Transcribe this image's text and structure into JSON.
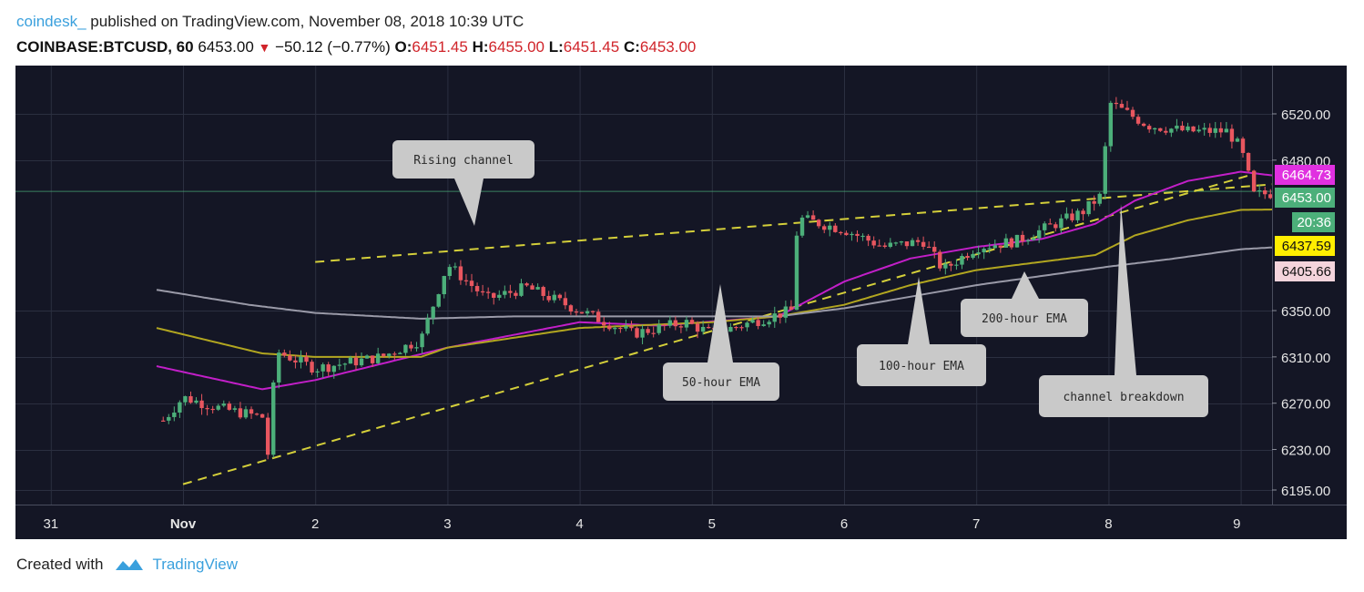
{
  "header": {
    "author": "coindesk_",
    "published": " published on TradingView.com, November 08, 2018 10:39 UTC",
    "symbol": "COINBASE:BTCUSD, 60",
    "last": "6453.00",
    "change": "−50.12 (−0.77%)",
    "o_label": "O:",
    "o_value": "6451.45",
    "h_label": "H:",
    "h_value": "6455.00",
    "l_label": "L:",
    "l_value": "6451.45",
    "c_label": "C:",
    "c_value": "6453.00"
  },
  "footer": {
    "created_with": "Created with",
    "brand": "TradingView"
  },
  "colors": {
    "background": "#141625",
    "grid": "#2b2f40",
    "up": "#4caf7a",
    "down": "#e8565f",
    "ema50": "#c21fc8",
    "ema100": "#b2a620",
    "ema200": "#9a9aa8",
    "channel": "#d4cf3a",
    "callout": "#c9c9c9"
  },
  "chart_data": {
    "type": "candlestick",
    "title": "COINBASE:BTCUSD, 60",
    "x_ticks": [
      "31",
      "Nov",
      "2",
      "3",
      "4",
      "5",
      "6",
      "7",
      "8",
      "9"
    ],
    "y_ticks": [
      "6520.00",
      "6480.00",
      "6350.00",
      "6310.00",
      "6270.00",
      "6230.00",
      "6195.00"
    ],
    "y_range": [
      6180,
      6560
    ],
    "price_badges": [
      {
        "value": "6464.73",
        "series": "50-hour EMA"
      },
      {
        "value": "6453.00",
        "series": "last price"
      },
      {
        "value": "20:36",
        "series": "countdown"
      },
      {
        "value": "6437.59",
        "series": "100-hour EMA"
      },
      {
        "value": "6405.66",
        "series": "200-hour EMA"
      }
    ],
    "last_price": 6453.0,
    "price_path": [
      {
        "t": -0.15,
        "p": 6255
      },
      {
        "t": 0.0,
        "p": 6275
      },
      {
        "t": 0.3,
        "p": 6265
      },
      {
        "t": 0.6,
        "p": 6258
      },
      {
        "t": 0.65,
        "p": 6220
      },
      {
        "t": 0.7,
        "p": 6315
      },
      {
        "t": 1.0,
        "p": 6300
      },
      {
        "t": 1.5,
        "p": 6310
      },
      {
        "t": 1.8,
        "p": 6325
      },
      {
        "t": 2.0,
        "p": 6390
      },
      {
        "t": 2.3,
        "p": 6360
      },
      {
        "t": 2.6,
        "p": 6370
      },
      {
        "t": 3.0,
        "p": 6350
      },
      {
        "t": 3.4,
        "p": 6330
      },
      {
        "t": 3.8,
        "p": 6340
      },
      {
        "t": 4.0,
        "p": 6330
      },
      {
        "t": 4.3,
        "p": 6340
      },
      {
        "t": 4.6,
        "p": 6350
      },
      {
        "t": 4.65,
        "p": 6430
      },
      {
        "t": 5.0,
        "p": 6420
      },
      {
        "t": 5.3,
        "p": 6405
      },
      {
        "t": 5.6,
        "p": 6410
      },
      {
        "t": 5.75,
        "p": 6385
      },
      {
        "t": 6.0,
        "p": 6405
      },
      {
        "t": 6.3,
        "p": 6410
      },
      {
        "t": 6.5,
        "p": 6420
      },
      {
        "t": 6.8,
        "p": 6435
      },
      {
        "t": 6.95,
        "p": 6450
      },
      {
        "t": 7.0,
        "p": 6530
      },
      {
        "t": 7.3,
        "p": 6510
      },
      {
        "t": 7.6,
        "p": 6505
      },
      {
        "t": 7.9,
        "p": 6505
      },
      {
        "t": 8.0,
        "p": 6490
      },
      {
        "t": 8.1,
        "p": 6450
      },
      {
        "t": 8.4,
        "p": 6453
      }
    ],
    "series": [
      {
        "name": "50-hour EMA",
        "color_key": "ema50",
        "points": [
          {
            "t": -0.2,
            "p": 6302
          },
          {
            "t": 0.6,
            "p": 6282
          },
          {
            "t": 1.0,
            "p": 6290
          },
          {
            "t": 2.0,
            "p": 6318
          },
          {
            "t": 3.0,
            "p": 6340
          },
          {
            "t": 3.6,
            "p": 6337
          },
          {
            "t": 4.5,
            "p": 6345
          },
          {
            "t": 5.0,
            "p": 6375
          },
          {
            "t": 5.5,
            "p": 6395
          },
          {
            "t": 6.0,
            "p": 6405
          },
          {
            "t": 6.5,
            "p": 6412
          },
          {
            "t": 6.9,
            "p": 6425
          },
          {
            "t": 7.2,
            "p": 6445
          },
          {
            "t": 7.6,
            "p": 6462
          },
          {
            "t": 8.0,
            "p": 6470
          },
          {
            "t": 8.4,
            "p": 6464.73
          }
        ]
      },
      {
        "name": "100-hour EMA",
        "color_key": "ema100",
        "points": [
          {
            "t": -0.2,
            "p": 6335
          },
          {
            "t": 0.6,
            "p": 6313
          },
          {
            "t": 1.0,
            "p": 6310
          },
          {
            "t": 1.8,
            "p": 6310
          },
          {
            "t": 2.0,
            "p": 6318
          },
          {
            "t": 3.0,
            "p": 6335
          },
          {
            "t": 4.0,
            "p": 6340
          },
          {
            "t": 4.5,
            "p": 6345
          },
          {
            "t": 5.0,
            "p": 6355
          },
          {
            "t": 5.5,
            "p": 6372
          },
          {
            "t": 6.0,
            "p": 6385
          },
          {
            "t": 6.9,
            "p": 6398
          },
          {
            "t": 7.2,
            "p": 6415
          },
          {
            "t": 7.6,
            "p": 6428
          },
          {
            "t": 8.0,
            "p": 6437
          },
          {
            "t": 8.4,
            "p": 6437.59
          }
        ]
      },
      {
        "name": "200-hour EMA",
        "color_key": "ema200",
        "points": [
          {
            "t": -0.2,
            "p": 6368
          },
          {
            "t": 0.5,
            "p": 6355
          },
          {
            "t": 1.0,
            "p": 6348
          },
          {
            "t": 1.8,
            "p": 6343
          },
          {
            "t": 2.5,
            "p": 6345
          },
          {
            "t": 3.5,
            "p": 6345
          },
          {
            "t": 4.5,
            "p": 6345
          },
          {
            "t": 5.0,
            "p": 6352
          },
          {
            "t": 5.5,
            "p": 6362
          },
          {
            "t": 6.0,
            "p": 6372
          },
          {
            "t": 6.5,
            "p": 6380
          },
          {
            "t": 7.0,
            "p": 6388
          },
          {
            "t": 7.5,
            "p": 6395
          },
          {
            "t": 8.0,
            "p": 6403
          },
          {
            "t": 8.4,
            "p": 6405.66
          }
        ]
      }
    ],
    "channel_lines": [
      {
        "name": "channel-upper",
        "from": {
          "t": 1.0,
          "p": 6392
        },
        "to": {
          "t": 8.12,
          "p": 6458
        },
        "extend_to": 9.2
      },
      {
        "name": "channel-lower",
        "from": {
          "t": 0.0,
          "p": 6200
        },
        "to": {
          "t": 6.95,
          "p": 6430
        },
        "extend_to": 8.12
      }
    ],
    "annotations": [
      {
        "text": "Rising channel"
      },
      {
        "text": "50-hour EMA"
      },
      {
        "text": "100-hour EMA"
      },
      {
        "text": "200-hour EMA"
      },
      {
        "text": "channel breakdown"
      }
    ]
  }
}
